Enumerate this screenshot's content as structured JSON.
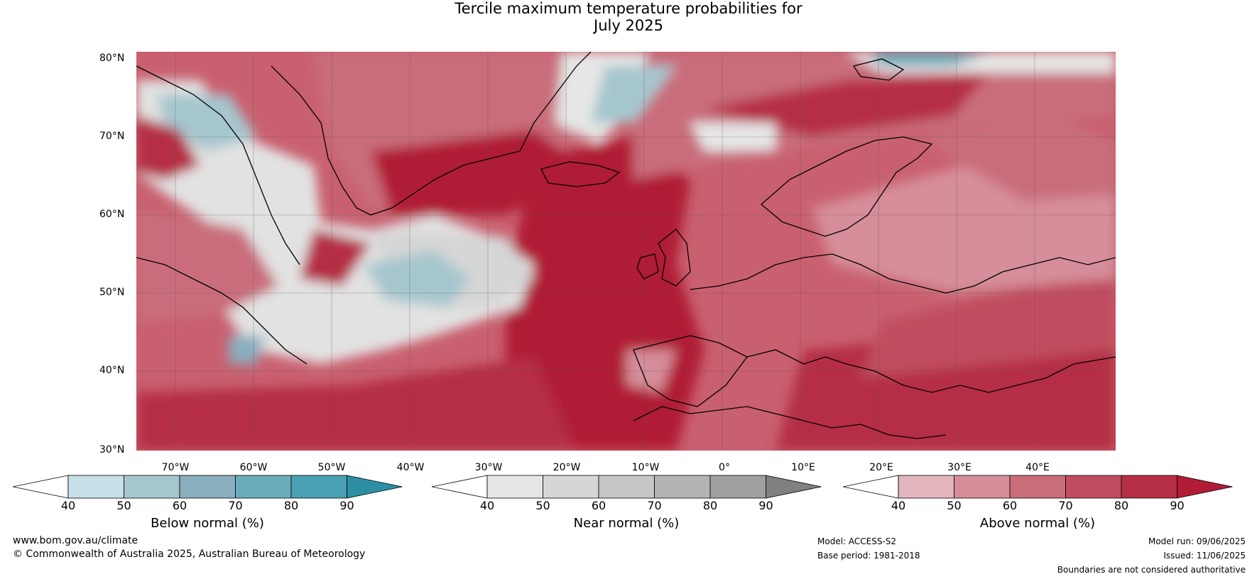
{
  "title_line1": "Tercile maximum temperature probabilities for",
  "title_line2": "July 2025",
  "lat_labels": [
    "80°N",
    "70°N",
    "60°N",
    "50°N",
    "40°N",
    "30°N"
  ],
  "lon_labels": [
    "70°W",
    "60°W",
    "50°W",
    "40°W",
    "30°W",
    "20°W",
    "10°W",
    "0°",
    "10°E",
    "20°E",
    "30°E",
    "40°E"
  ],
  "legend": {
    "ticks": [
      "40",
      "50",
      "60",
      "70",
      "80",
      "90"
    ],
    "below": {
      "label": "Below normal (%)",
      "colors": [
        "#ffffff",
        "#c8e0e7",
        "#a6c6ce",
        "#8aafbf",
        "#6aacba",
        "#4aa0b3",
        "#2d8fa3"
      ]
    },
    "near": {
      "label": "Near normal (%)",
      "colors": [
        "#ffffff",
        "#e6e6e6",
        "#d6d6d6",
        "#c6c6c6",
        "#b4b4b4",
        "#a0a0a0",
        "#808080"
      ]
    },
    "above": {
      "label": "Above normal (%)",
      "colors": [
        "#ffffff",
        "#e3b5bd",
        "#d68e9a",
        "#c96d7b",
        "#c04d5f",
        "#b52e44",
        "#b01c36"
      ]
    }
  },
  "footer": {
    "website": "www.bom.gov.au/climate",
    "copyright": "© Commonwealth of Australia 2025, Australian Bureau of Meteorology",
    "model": "Model: ACCESS-S2",
    "base_period": "Base period: 1981-2018",
    "model_run": "Model run: 09/06/2025",
    "issued": "Issued: 11/06/2025",
    "disclaimer": "Boundaries are not considered authoritative"
  }
}
